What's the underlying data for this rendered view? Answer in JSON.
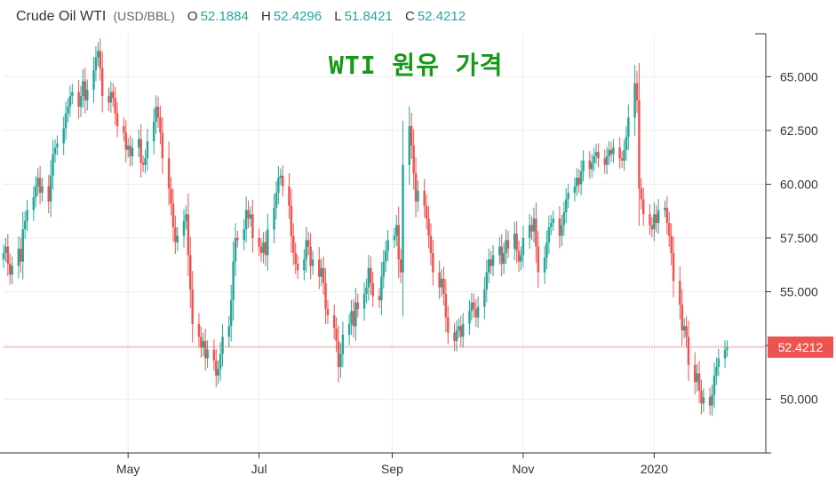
{
  "legend": {
    "symbol": "Crude Oil WTI",
    "unit": "(USD/BBL)",
    "o_label": "O",
    "o_value": "52.1884",
    "h_label": "H",
    "h_value": "52.4296",
    "l_label": "L",
    "l_value": "51.8421",
    "c_label": "C",
    "c_value": "52.4212"
  },
  "headline": "WTI 원유 가격",
  "colors": {
    "up": "#26a69a",
    "down": "#ef5350",
    "grid": "#ececec",
    "price_line": "#ef5350"
  },
  "chart_data": {
    "type": "candlestick",
    "title": "WTI 원유 가격",
    "xlabel": "",
    "ylabel": "",
    "ylim": [
      47.5,
      67.0
    ],
    "yticks": [
      "50.000",
      "52.500",
      "55.000",
      "57.500",
      "60.000",
      "62.500",
      "65.000"
    ],
    "xticks": [
      "May",
      "Jul",
      "Sep",
      "Nov",
      "2020"
    ],
    "grid": true,
    "last_price": "52.4212",
    "ohlc_x": [
      "2019-03-04",
      "2019-03-05",
      "2019-03-06",
      "2019-03-07",
      "2019-03-08",
      "2019-03-11",
      "2019-03-12",
      "2019-03-13",
      "2019-03-14",
      "2019-03-15",
      "2019-03-18",
      "2019-03-19",
      "2019-03-20",
      "2019-03-21",
      "2019-03-22",
      "2019-03-25",
      "2019-03-26",
      "2019-03-27",
      "2019-03-28",
      "2019-03-29",
      "2019-04-01",
      "2019-04-02",
      "2019-04-03",
      "2019-04-04",
      "2019-04-05",
      "2019-04-08",
      "2019-04-09",
      "2019-04-10",
      "2019-04-11",
      "2019-04-12",
      "2019-04-15",
      "2019-04-16",
      "2019-04-17",
      "2019-04-18",
      "2019-04-19",
      "2019-04-22",
      "2019-04-23",
      "2019-04-24",
      "2019-04-25",
      "2019-04-26",
      "2019-04-29",
      "2019-04-30",
      "2019-05-01",
      "2019-05-02",
      "2019-05-03",
      "2019-05-06",
      "2019-05-07",
      "2019-05-08",
      "2019-05-09",
      "2019-05-10",
      "2019-05-13",
      "2019-05-14",
      "2019-05-15",
      "2019-05-16",
      "2019-05-17",
      "2019-05-20",
      "2019-05-21",
      "2019-05-22",
      "2019-05-23",
      "2019-05-24",
      "2019-05-27",
      "2019-05-28",
      "2019-05-29",
      "2019-05-30",
      "2019-05-31",
      "2019-06-03",
      "2019-06-04",
      "2019-06-05",
      "2019-06-06",
      "2019-06-07",
      "2019-06-10",
      "2019-06-11",
      "2019-06-12",
      "2019-06-13",
      "2019-06-14",
      "2019-06-17",
      "2019-06-18",
      "2019-06-19",
      "2019-06-20",
      "2019-06-21",
      "2019-06-24",
      "2019-06-25",
      "2019-06-26",
      "2019-06-27",
      "2019-06-28",
      "2019-07-01",
      "2019-07-02",
      "2019-07-03",
      "2019-07-04",
      "2019-07-05",
      "2019-07-08",
      "2019-07-09",
      "2019-07-10",
      "2019-07-11",
      "2019-07-12",
      "2019-07-15",
      "2019-07-16",
      "2019-07-17",
      "2019-07-18",
      "2019-07-19",
      "2019-07-22",
      "2019-07-23",
      "2019-07-24",
      "2019-07-25",
      "2019-07-26",
      "2019-07-29",
      "2019-07-30",
      "2019-07-31",
      "2019-08-01",
      "2019-08-02",
      "2019-08-05",
      "2019-08-06",
      "2019-08-07",
      "2019-08-08",
      "2019-08-09",
      "2019-08-12",
      "2019-08-13",
      "2019-08-14",
      "2019-08-15",
      "2019-08-16",
      "2019-08-19",
      "2019-08-20",
      "2019-08-21",
      "2019-08-22",
      "2019-08-23",
      "2019-08-26",
      "2019-08-27",
      "2019-08-28",
      "2019-08-29",
      "2019-08-30",
      "2019-09-02",
      "2019-09-03",
      "2019-09-04",
      "2019-09-05",
      "2019-09-06",
      "2019-09-09",
      "2019-09-10",
      "2019-09-11",
      "2019-09-12",
      "2019-09-13",
      "2019-09-16",
      "2019-09-17",
      "2019-09-18",
      "2019-09-19",
      "2019-09-20",
      "2019-09-23",
      "2019-09-24",
      "2019-09-25",
      "2019-09-26",
      "2019-09-27",
      "2019-09-30",
      "2019-10-01",
      "2019-10-02",
      "2019-10-03",
      "2019-10-04",
      "2019-10-07",
      "2019-10-08",
      "2019-10-09",
      "2019-10-10",
      "2019-10-11",
      "2019-10-14",
      "2019-10-15",
      "2019-10-16",
      "2019-10-17",
      "2019-10-18",
      "2019-10-21",
      "2019-10-22",
      "2019-10-23",
      "2019-10-24",
      "2019-10-25",
      "2019-10-28",
      "2019-10-29",
      "2019-10-30",
      "2019-10-31",
      "2019-11-01",
      "2019-11-04",
      "2019-11-05",
      "2019-11-06",
      "2019-11-07",
      "2019-11-08",
      "2019-11-11",
      "2019-11-12",
      "2019-11-13",
      "2019-11-14",
      "2019-11-15",
      "2019-11-18",
      "2019-11-19",
      "2019-11-20",
      "2019-11-21",
      "2019-11-22",
      "2019-11-25",
      "2019-11-26",
      "2019-11-27",
      "2019-11-28",
      "2019-11-29",
      "2019-12-02",
      "2019-12-03",
      "2019-12-04",
      "2019-12-05",
      "2019-12-06",
      "2019-12-09",
      "2019-12-10",
      "2019-12-11",
      "2019-12-12",
      "2019-12-13",
      "2019-12-16",
      "2019-12-17",
      "2019-12-18",
      "2019-12-19",
      "2019-12-20",
      "2019-12-23",
      "2019-12-24",
      "2019-12-25",
      "2019-12-26",
      "2019-12-27",
      "2019-12-30",
      "2019-12-31",
      "2020-01-01",
      "2020-01-02",
      "2020-01-03",
      "2020-01-06",
      "2020-01-07",
      "2020-01-08",
      "2020-01-09",
      "2020-01-10",
      "2020-01-13",
      "2020-01-14",
      "2020-01-15",
      "2020-01-16",
      "2020-01-17",
      "2020-01-20",
      "2020-01-21",
      "2020-01-22",
      "2020-01-23",
      "2020-01-24",
      "2020-01-27",
      "2020-01-28",
      "2020-01-29",
      "2020-01-30",
      "2020-01-31",
      "2020-02-03",
      "2020-02-04",
      "2020-02-05",
      "2020-02-06",
      "2020-02-07",
      "2020-02-10",
      "2020-02-11",
      "2020-02-12",
      "2020-02-13"
    ],
    "ohlc_close": [
      56.8,
      57.1,
      56.3,
      55.8,
      56.2,
      57.0,
      56.4,
      57.9,
      58.3,
      58.8,
      59.4,
      59.9,
      60.3,
      59.6,
      59.9,
      59.2,
      60.4,
      61.4,
      61.7,
      61.9,
      62.6,
      63.3,
      63.6,
      64.1,
      64.3,
      63.6,
      64.1,
      64.8,
      63.9,
      64.4,
      65.3,
      65.9,
      66.2,
      65.4,
      64.1,
      63.8,
      64.3,
      64.0,
      63.3,
      62.7,
      62.4,
      61.6,
      61.8,
      61.3,
      61.7,
      62.1,
      61.0,
      60.9,
      61.2,
      62.0,
      62.9,
      63.6,
      63.1,
      62.4,
      61.2,
      59.8,
      59.1,
      58.0,
      57.3,
      57.6,
      58.3,
      58.6,
      56.7,
      55.1,
      53.5,
      52.9,
      52.4,
      52.7,
      51.9,
      52.3,
      51.8,
      51.1,
      51.4,
      52.1,
      52.9,
      53.4,
      54.6,
      56.4,
      57.5,
      57.4,
      57.9,
      58.8,
      58.4,
      58.6,
      57.5,
      57.1,
      56.8,
      57.3,
      56.7,
      57.9,
      58.9,
      59.6,
      60.3,
      60.4,
      59.9,
      59.0,
      57.6,
      56.8,
      56.3,
      56.0,
      56.5,
      57.4,
      57.1,
      56.2,
      56.5,
      55.7,
      56.1,
      55.4,
      54.2,
      53.9,
      53.3,
      52.7,
      51.5,
      52.1,
      53.0,
      53.5,
      54.1,
      53.4,
      54.5,
      54.2,
      54.9,
      55.2,
      56.1,
      55.4,
      54.8,
      54.6,
      55.7,
      56.4,
      56.9,
      57.4,
      57.6,
      58.1,
      56.5,
      55.9,
      60.9,
      62.7,
      61.8,
      60.5,
      59.2,
      59.7,
      59.0,
      58.4,
      57.6,
      56.8,
      55.9,
      55.2,
      55.6,
      54.9,
      53.8,
      53.1,
      52.7,
      53.2,
      53.4,
      52.9,
      53.5,
      54.1,
      54.5,
      54.2,
      53.8,
      54.3,
      55.1,
      55.9,
      56.5,
      56.2,
      56.7,
      57.1,
      56.3,
      56.8,
      57.4,
      57.0,
      57.7,
      56.9,
      56.4,
      56.7,
      57.5,
      58.1,
      57.8,
      58.4,
      57.1,
      55.9,
      56.6,
      57.3,
      58.0,
      58.2,
      58.4,
      57.6,
      58.1,
      58.7,
      59.3,
      59.6,
      59.9,
      60.3,
      60.0,
      60.6,
      61.1,
      60.7,
      61.0,
      61.3,
      61.5,
      61.2,
      60.9,
      61.3,
      61.6,
      61.4,
      61.7,
      61.2,
      61.1,
      61.6,
      62.2,
      63.1,
      64.7,
      63.9,
      59.8,
      59.3,
      58.6,
      58.1,
      57.9,
      58.6,
      58.2,
      58.8,
      58.9,
      58.2,
      57.6,
      56.8,
      55.5,
      54.4,
      53.2,
      53.4,
      52.9,
      51.6,
      50.8,
      51.2,
      50.4,
      49.8,
      50.1,
      49.7,
      50.2,
      51.1,
      51.5,
      51.9,
      52.3,
      52.4
    ],
    "ohlc_change": [
      0.3,
      0.3,
      -0.8,
      -0.5,
      0.4,
      0.8,
      -0.6,
      1.5,
      0.4,
      0.5,
      0.6,
      0.5,
      0.4,
      -0.7,
      0.3,
      -0.7,
      1.2,
      1.0,
      0.3,
      0.2,
      0.7,
      0.7,
      0.3,
      0.5,
      0.2,
      -0.7,
      0.5,
      0.7,
      -0.9,
      0.5,
      0.9,
      0.6,
      0.3,
      -0.8,
      -1.3,
      -0.3,
      0.5,
      -0.3,
      -0.7,
      -0.6,
      -0.3,
      -0.8,
      0.2,
      -0.5,
      0.4,
      0.4,
      -1.1,
      -0.1,
      0.3,
      0.8,
      0.9,
      0.7,
      -0.5,
      -0.7,
      -1.2,
      -1.4,
      -0.7,
      -1.1,
      -0.7,
      0.3,
      0.7,
      0.3,
      -1.9,
      -1.6,
      -1.6,
      -0.6,
      -0.5,
      0.3,
      -0.8,
      0.4,
      -0.5,
      -0.7,
      0.3,
      0.7,
      0.8,
      0.5,
      1.2,
      1.8,
      1.1,
      -0.1,
      0.5,
      0.9,
      -0.4,
      0.2,
      -1.1,
      -0.4,
      -0.3,
      0.5,
      -0.6,
      1.2,
      1.0,
      0.7,
      0.7,
      0.1,
      -0.5,
      -0.9,
      -1.4,
      -0.8,
      -0.5,
      -0.3,
      0.5,
      0.9,
      -0.3,
      -0.9,
      0.3,
      -0.8,
      0.4,
      -0.7,
      -1.2,
      -0.3,
      -0.6,
      -0.6,
      -1.2,
      0.6,
      0.9,
      0.5,
      0.6,
      -0.7,
      1.1,
      -0.3,
      0.7,
      0.3,
      0.9,
      -0.7,
      -0.6,
      -0.2,
      1.1,
      0.7,
      0.5,
      0.5,
      0.2,
      0.5,
      -1.6,
      -0.6,
      5.0,
      1.8,
      -0.9,
      -1.3,
      -1.3,
      0.5,
      -0.7,
      -0.6,
      -0.8,
      -0.8,
      -0.9,
      -0.7,
      0.4,
      -0.7,
      -1.1,
      -0.7,
      -0.4,
      0.5,
      0.2,
      -0.5,
      0.6,
      0.6,
      0.4,
      -0.3,
      -0.4,
      0.5,
      0.8,
      0.8,
      0.6,
      -0.3,
      0.5,
      0.4,
      -0.8,
      0.5,
      0.6,
      -0.4,
      0.7,
      -0.8,
      -0.5,
      0.3,
      0.8,
      0.6,
      -0.3,
      0.6,
      -1.3,
      -1.2,
      0.7,
      0.7,
      0.7,
      0.2,
      0.2,
      -0.8,
      0.5,
      0.6,
      0.6,
      0.3,
      0.3,
      0.4,
      -0.3,
      0.6,
      0.5,
      -0.4,
      0.3,
      0.3,
      0.2,
      -0.3,
      -0.3,
      0.4,
      0.3,
      -0.2,
      0.3,
      -0.5,
      -0.1,
      0.5,
      0.6,
      0.9,
      1.6,
      -0.8,
      -4.1,
      -0.5,
      -0.7,
      -0.5,
      -0.2,
      0.7,
      -0.4,
      0.6,
      0.1,
      -0.7,
      -0.6,
      -0.8,
      -1.3,
      -1.1,
      -1.2,
      0.2,
      -0.5,
      -1.3,
      -0.8,
      0.4,
      -0.8,
      -0.6,
      0.3,
      -0.4,
      0.5,
      0.9,
      0.4,
      0.4,
      0.4,
      0.1
    ]
  }
}
